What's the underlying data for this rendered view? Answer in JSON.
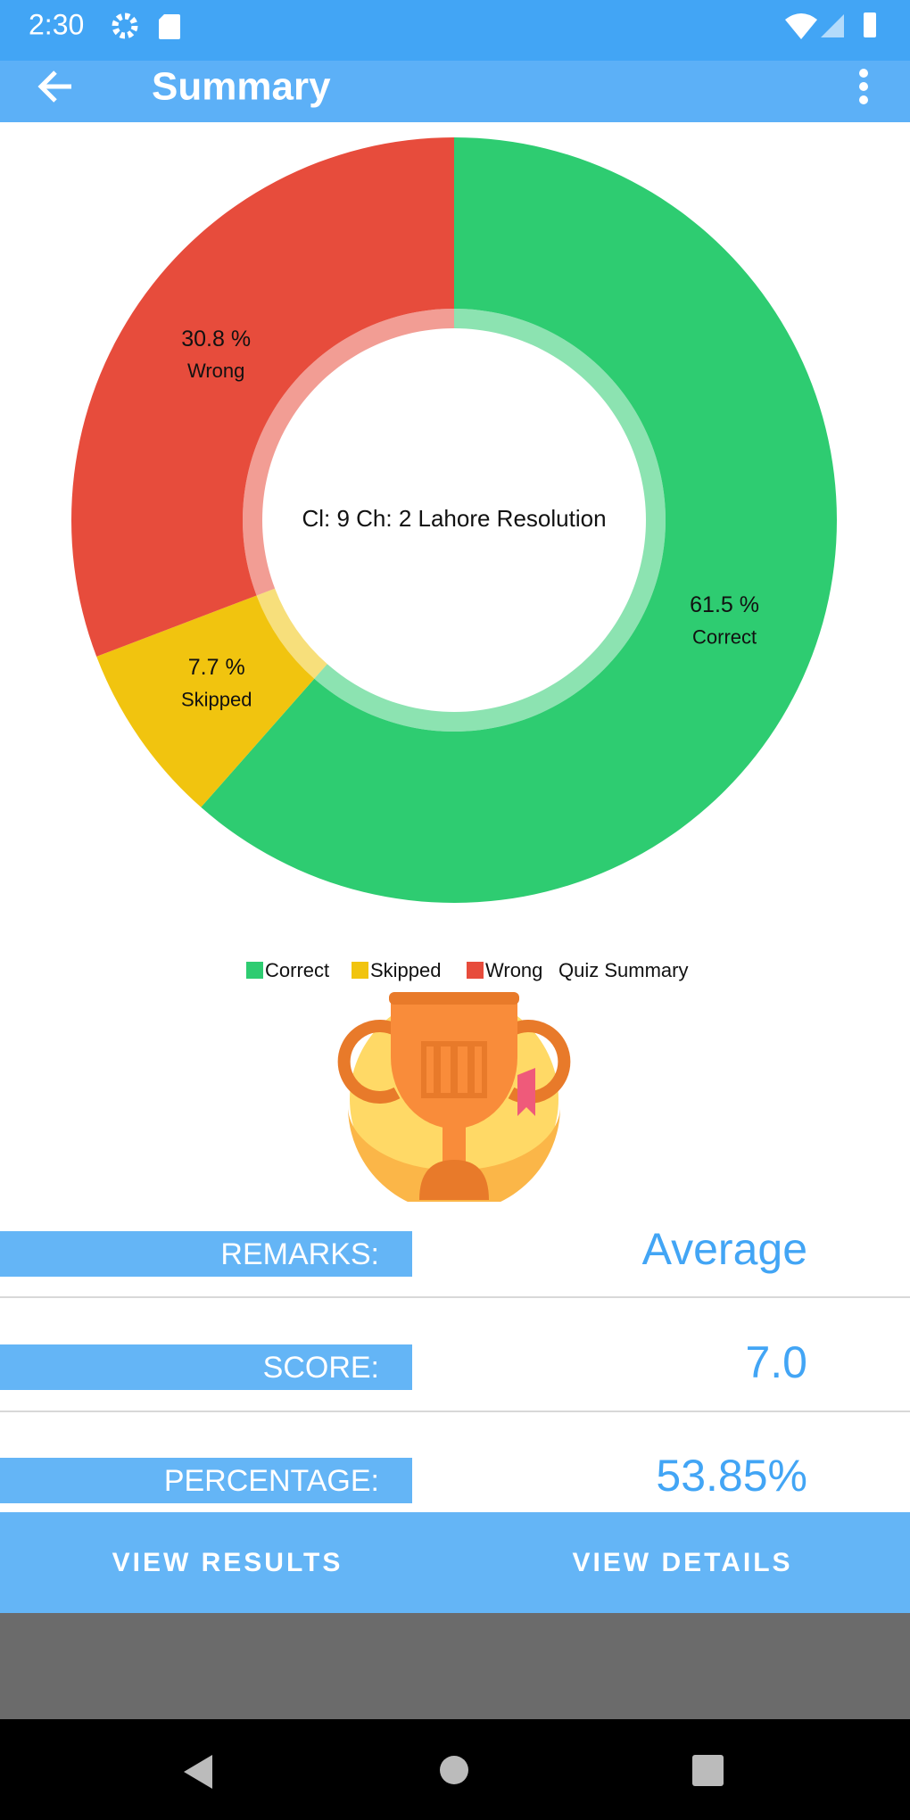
{
  "status_bar": {
    "time": "2:30"
  },
  "app_bar": {
    "title": "Summary"
  },
  "chart_data": {
    "type": "pie",
    "center_text": "Cl: 9 Ch: 2 Lahore Resolution",
    "categories": [
      "Correct",
      "Skipped",
      "Wrong"
    ],
    "values": [
      61.5,
      7.7,
      30.8
    ],
    "value_labels": [
      "61.5 %",
      "7.7 %",
      "30.8 %"
    ],
    "colors": [
      "#2ecc71",
      "#f1c40f",
      "#e74c3c"
    ],
    "donut": true,
    "legend": "bottom",
    "description": "Quiz Summary"
  },
  "summary": {
    "rows": [
      {
        "label": "REMARKS:",
        "value": "Average"
      },
      {
        "label": "SCORE:",
        "value": "7.0"
      },
      {
        "label": "PERCENTAGE:",
        "value": "53.85%"
      }
    ]
  },
  "buttons": [
    "VIEW RESULTS",
    "VIEW DETAILS"
  ]
}
